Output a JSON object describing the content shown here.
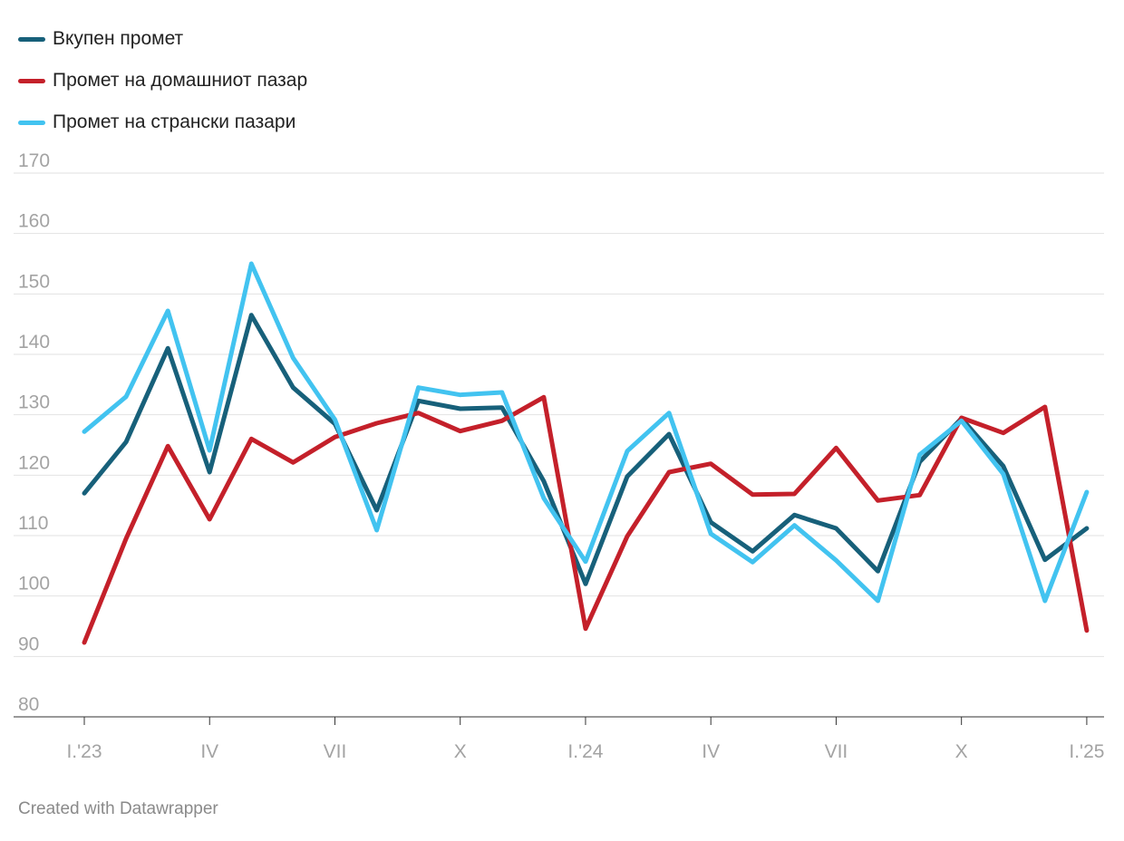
{
  "chart_data": {
    "type": "line",
    "title": "",
    "xlabel": "",
    "ylabel": "",
    "ylim": [
      80,
      170
    ],
    "yticks": [
      80,
      90,
      100,
      110,
      120,
      130,
      140,
      150,
      160,
      170
    ],
    "x_tick_labels": [
      {
        "index": 0,
        "label": "I.'23"
      },
      {
        "index": 3,
        "label": "IV"
      },
      {
        "index": 6,
        "label": "VII"
      },
      {
        "index": 9,
        "label": "X"
      },
      {
        "index": 12,
        "label": "I.'24"
      },
      {
        "index": 15,
        "label": "IV"
      },
      {
        "index": 18,
        "label": "VII"
      },
      {
        "index": 21,
        "label": "X"
      },
      {
        "index": 24,
        "label": "I.'25"
      }
    ],
    "categories": [
      "I.2023",
      "II.2023",
      "III.2023",
      "IV.2023",
      "V.2023",
      "VI.2023",
      "VII.2023",
      "VIII.2023",
      "IX.2023",
      "X.2023",
      "XI.2023",
      "XII.2023",
      "I.2024",
      "II.2024",
      "III.2024",
      "IV.2024",
      "V.2024",
      "VI.2024",
      "VII.2024",
      "VIII.2024",
      "IX.2024",
      "X.2024",
      "XI.2024",
      "XII.2024",
      "I.2025"
    ],
    "grid": true,
    "legend": "top-left",
    "series": [
      {
        "name": "Вкупен промет",
        "color": "#17607a",
        "values": [
          117.0,
          125.5,
          141.0,
          120.5,
          146.5,
          134.5,
          128.5,
          114.2,
          132.3,
          131.0,
          131.2,
          119.0,
          102.0,
          119.8,
          126.8,
          112.2,
          107.4,
          113.4,
          111.2,
          104.1,
          122.2,
          129.4,
          121.5,
          106.0,
          111.2
        ]
      },
      {
        "name": "Промет на домашниот пазар",
        "color": "#c4202a",
        "values": [
          92.3,
          109.5,
          124.8,
          112.7,
          126.0,
          122.1,
          126.3,
          128.6,
          130.3,
          127.3,
          129.0,
          132.9,
          94.6,
          109.9,
          120.5,
          121.9,
          116.8,
          116.9,
          124.5,
          115.8,
          116.7,
          129.5,
          127.0,
          131.3,
          94.3
        ]
      },
      {
        "name": "Промет на странски пазари",
        "color": "#42c3f0",
        "values": [
          127.2,
          133.0,
          147.2,
          124.1,
          155.0,
          139.4,
          129.2,
          110.9,
          134.5,
          133.3,
          133.7,
          116.2,
          105.7,
          124.0,
          130.3,
          110.3,
          105.6,
          111.7,
          105.9,
          99.2,
          123.4,
          129.0,
          120.2,
          99.2,
          117.2
        ]
      }
    ]
  },
  "footer": {
    "text": "Created with Datawrapper"
  }
}
